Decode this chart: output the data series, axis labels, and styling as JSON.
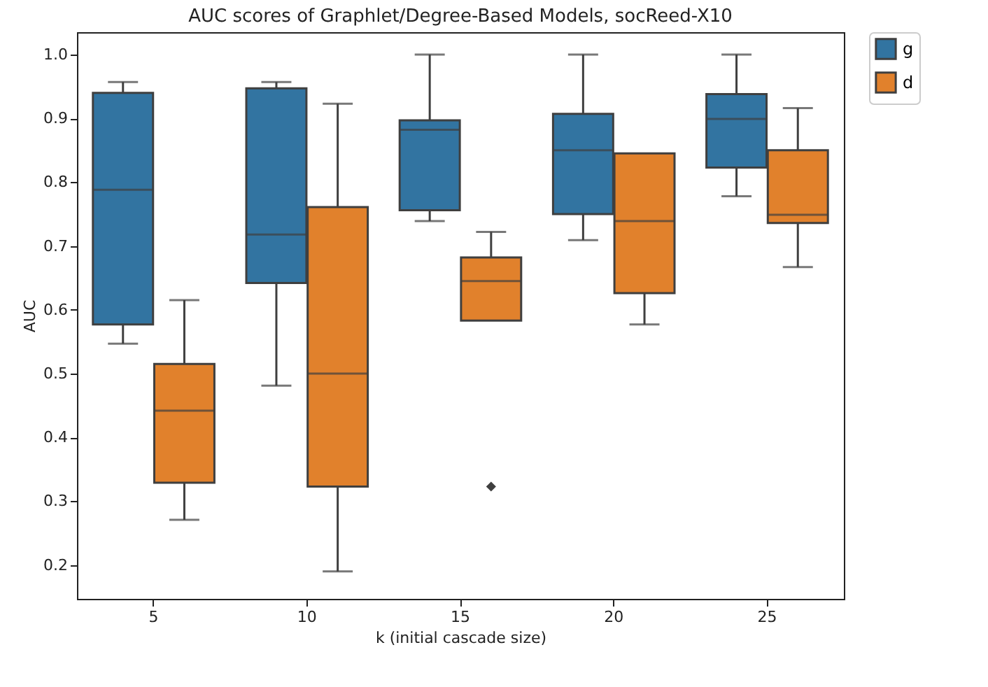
{
  "chart_data": {
    "type": "box",
    "title": "AUC scores of Graphlet/Degree-Based Models, socReed-X10",
    "xlabel": "k (initial cascade size)",
    "ylabel": "AUC",
    "categories": [
      "5",
      "10",
      "15",
      "20",
      "25"
    ],
    "ylim": [
      0.147,
      1.035
    ],
    "yticks": [
      {
        "value": 0.2,
        "label": "0.2"
      },
      {
        "value": 0.3,
        "label": "0.3"
      },
      {
        "value": 0.4,
        "label": "0.4"
      },
      {
        "value": 0.5,
        "label": "0.5"
      },
      {
        "value": 0.6,
        "label": "0.6"
      },
      {
        "value": 0.7,
        "label": "0.7"
      },
      {
        "value": 0.8,
        "label": "0.8"
      },
      {
        "value": 0.9,
        "label": "0.9"
      },
      {
        "value": 1,
        "label": "1.0"
      }
    ],
    "legend": "top right",
    "grid": false,
    "series": [
      {
        "name": "g",
        "color": "#3274a1",
        "boxes": [
          {
            "low": 0.547,
            "q1": 0.577,
            "median": 0.788,
            "q3": 0.94,
            "high": 0.957
          },
          {
            "low": 0.481,
            "q1": 0.642,
            "median": 0.718,
            "q3": 0.947,
            "high": 0.957
          },
          {
            "low": 0.739,
            "q1": 0.756,
            "median": 0.882,
            "q3": 0.897,
            "high": 1.0
          },
          {
            "low": 0.709,
            "q1": 0.75,
            "median": 0.85,
            "q3": 0.907,
            "high": 1.0
          },
          {
            "low": 0.778,
            "q1": 0.823,
            "median": 0.899,
            "q3": 0.938,
            "high": 1.0
          }
        ]
      },
      {
        "name": "d",
        "color": "#e1812c",
        "boxes": [
          {
            "low": 0.271,
            "q1": 0.329,
            "median": 0.442,
            "q3": 0.515,
            "high": 0.615
          },
          {
            "low": 0.19,
            "q1": 0.323,
            "median": 0.5,
            "q3": 0.761,
            "high": 0.923
          },
          {
            "low": 0.583,
            "q1": 0.583,
            "median": 0.645,
            "q3": 0.682,
            "high": 0.722,
            "outliers": [
              0.323
            ]
          },
          {
            "low": 0.577,
            "q1": 0.626,
            "median": 0.739,
            "q3": 0.845,
            "high": 0.845
          },
          {
            "low": 0.667,
            "q1": 0.736,
            "median": 0.749,
            "q3": 0.85,
            "high": 0.916
          }
        ]
      }
    ]
  }
}
